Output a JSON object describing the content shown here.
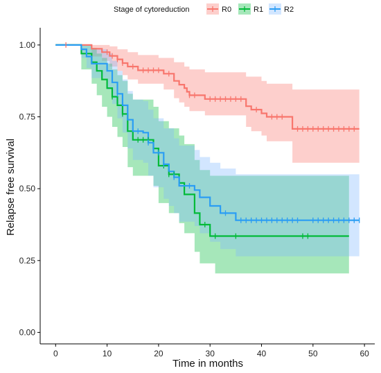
{
  "chart_data": {
    "type": "line",
    "subtype": "kaplan-meier",
    "title": "",
    "xlabel": "Time in months",
    "ylabel": "Relapse free survival",
    "xlim": [
      -3,
      62
    ],
    "ylim": [
      -0.04,
      1.06
    ],
    "x_ticks": [
      0,
      10,
      20,
      30,
      40,
      50,
      60
    ],
    "y_ticks": [
      0,
      0.25,
      0.5,
      0.75,
      1
    ],
    "y_tick_labels": [
      "0.00",
      "0.25",
      "0.50",
      "0.75",
      "1.00"
    ],
    "grid": false,
    "legend": {
      "title": "Stage of cytoreduction",
      "position": "top",
      "entries": [
        "R0",
        "R1",
        "R2"
      ]
    },
    "series": [
      {
        "name": "R0",
        "color": "#F8766D",
        "band_color": "#F8766D",
        "steps": [
          [
            0,
            1.0
          ],
          [
            7,
            0.987
          ],
          [
            9,
            0.975
          ],
          [
            10.5,
            0.962
          ],
          [
            12,
            0.95
          ],
          [
            13,
            0.937
          ],
          [
            14,
            0.925
          ],
          [
            16,
            0.912
          ],
          [
            21,
            0.9
          ],
          [
            23,
            0.875
          ],
          [
            24,
            0.862
          ],
          [
            25,
            0.85
          ],
          [
            25.5,
            0.837
          ],
          [
            26,
            0.825
          ],
          [
            29,
            0.812
          ],
          [
            37,
            0.787
          ],
          [
            38,
            0.775
          ],
          [
            40,
            0.762
          ],
          [
            41,
            0.75
          ],
          [
            46,
            0.708
          ],
          [
            59,
            0.708
          ]
        ],
        "upper": [
          [
            0,
            1.0
          ],
          [
            7,
            1.0
          ],
          [
            10.5,
            0.995
          ],
          [
            12,
            0.985
          ],
          [
            14,
            0.975
          ],
          [
            16,
            0.965
          ],
          [
            20,
            0.955
          ],
          [
            23,
            0.94
          ],
          [
            25,
            0.925
          ],
          [
            26,
            0.915
          ],
          [
            29,
            0.905
          ],
          [
            37,
            0.89
          ],
          [
            40,
            0.875
          ],
          [
            41,
            0.865
          ],
          [
            46,
            0.845
          ],
          [
            59,
            0.845
          ]
        ],
        "lower": [
          [
            0,
            1.0
          ],
          [
            7,
            0.96
          ],
          [
            9,
            0.945
          ],
          [
            10.5,
            0.925
          ],
          [
            12,
            0.91
          ],
          [
            13,
            0.895
          ],
          [
            14,
            0.88
          ],
          [
            16,
            0.865
          ],
          [
            21,
            0.845
          ],
          [
            23,
            0.815
          ],
          [
            24,
            0.8
          ],
          [
            25,
            0.785
          ],
          [
            26,
            0.77
          ],
          [
            29,
            0.755
          ],
          [
            37,
            0.715
          ],
          [
            38,
            0.7
          ],
          [
            40,
            0.685
          ],
          [
            41,
            0.665
          ],
          [
            46,
            0.59
          ],
          [
            59,
            0.59
          ]
        ],
        "censored": [
          2,
          10,
          11,
          12,
          13,
          15,
          17,
          18,
          19,
          20,
          22,
          26,
          27,
          30,
          31,
          32,
          33,
          34,
          35,
          36,
          39,
          42,
          43,
          44,
          47,
          48,
          49,
          50,
          51,
          52,
          53,
          54,
          55,
          56,
          57,
          58
        ]
      },
      {
        "name": "R1",
        "color": "#00BA38",
        "band_color": "#00BA38",
        "steps": [
          [
            0,
            1.0
          ],
          [
            5,
            0.97
          ],
          [
            7,
            0.94
          ],
          [
            8,
            0.91
          ],
          [
            9,
            0.88
          ],
          [
            10,
            0.85
          ],
          [
            11,
            0.82
          ],
          [
            12,
            0.79
          ],
          [
            13,
            0.76
          ],
          [
            14,
            0.7
          ],
          [
            15,
            0.67
          ],
          [
            19,
            0.64
          ],
          [
            20,
            0.58
          ],
          [
            22,
            0.55
          ],
          [
            24,
            0.52
          ],
          [
            25,
            0.48
          ],
          [
            27,
            0.415
          ],
          [
            28,
            0.375
          ],
          [
            30,
            0.335
          ],
          [
            57,
            0.335
          ]
        ],
        "upper": [
          [
            0,
            1.0
          ],
          [
            5,
            1.0
          ],
          [
            7,
            0.99
          ],
          [
            8,
            0.97
          ],
          [
            9,
            0.955
          ],
          [
            10,
            0.935
          ],
          [
            11,
            0.915
          ],
          [
            12,
            0.895
          ],
          [
            13,
            0.875
          ],
          [
            14,
            0.83
          ],
          [
            15,
            0.81
          ],
          [
            19,
            0.785
          ],
          [
            20,
            0.735
          ],
          [
            22,
            0.71
          ],
          [
            24,
            0.685
          ],
          [
            25,
            0.655
          ],
          [
            27,
            0.6
          ],
          [
            28,
            0.565
          ],
          [
            30,
            0.545
          ],
          [
            57,
            0.545
          ]
        ],
        "lower": [
          [
            0,
            1.0
          ],
          [
            5,
            0.915
          ],
          [
            7,
            0.865
          ],
          [
            8,
            0.825
          ],
          [
            9,
            0.785
          ],
          [
            10,
            0.75
          ],
          [
            11,
            0.715
          ],
          [
            12,
            0.68
          ],
          [
            13,
            0.645
          ],
          [
            14,
            0.575
          ],
          [
            15,
            0.545
          ],
          [
            19,
            0.51
          ],
          [
            20,
            0.45
          ],
          [
            22,
            0.415
          ],
          [
            24,
            0.38
          ],
          [
            25,
            0.345
          ],
          [
            27,
            0.28
          ],
          [
            28,
            0.24
          ],
          [
            31,
            0.205
          ],
          [
            57,
            0.205
          ]
        ],
        "censored": [
          11,
          13,
          16,
          17,
          18,
          21,
          22,
          23,
          29,
          31,
          35,
          48,
          49
        ]
      },
      {
        "name": "R2",
        "color": "#2A9DF4",
        "band_color": "#7FB6FF",
        "steps": [
          [
            0,
            1.0
          ],
          [
            5,
            0.985
          ],
          [
            6,
            0.96
          ],
          [
            7,
            0.935
          ],
          [
            10,
            0.91
          ],
          [
            11,
            0.87
          ],
          [
            12,
            0.83
          ],
          [
            13,
            0.79
          ],
          [
            14,
            0.74
          ],
          [
            15,
            0.7
          ],
          [
            17,
            0.695
          ],
          [
            18,
            0.66
          ],
          [
            19,
            0.625
          ],
          [
            21,
            0.585
          ],
          [
            22,
            0.56
          ],
          [
            23,
            0.54
          ],
          [
            24,
            0.51
          ],
          [
            27,
            0.495
          ],
          [
            28,
            0.47
          ],
          [
            30,
            0.44
          ],
          [
            32,
            0.415
          ],
          [
            35,
            0.39
          ],
          [
            59,
            0.39
          ]
        ],
        "upper": [
          [
            0,
            1.0
          ],
          [
            5,
            1.0
          ],
          [
            7,
            0.985
          ],
          [
            10,
            0.97
          ],
          [
            11,
            0.945
          ],
          [
            12,
            0.91
          ],
          [
            13,
            0.88
          ],
          [
            14,
            0.84
          ],
          [
            15,
            0.81
          ],
          [
            17,
            0.805
          ],
          [
            18,
            0.775
          ],
          [
            19,
            0.745
          ],
          [
            21,
            0.71
          ],
          [
            23,
            0.675
          ],
          [
            24,
            0.65
          ],
          [
            27,
            0.635
          ],
          [
            28,
            0.61
          ],
          [
            30,
            0.59
          ],
          [
            32,
            0.57
          ],
          [
            35,
            0.55
          ],
          [
            59,
            0.55
          ]
        ],
        "lower": [
          [
            0,
            1.0
          ],
          [
            5,
            0.955
          ],
          [
            6,
            0.92
          ],
          [
            7,
            0.885
          ],
          [
            10,
            0.845
          ],
          [
            11,
            0.795
          ],
          [
            12,
            0.745
          ],
          [
            13,
            0.695
          ],
          [
            14,
            0.64
          ],
          [
            15,
            0.6
          ],
          [
            17,
            0.59
          ],
          [
            18,
            0.545
          ],
          [
            19,
            0.505
          ],
          [
            21,
            0.465
          ],
          [
            22,
            0.44
          ],
          [
            23,
            0.415
          ],
          [
            24,
            0.385
          ],
          [
            27,
            0.37
          ],
          [
            28,
            0.345
          ],
          [
            30,
            0.315
          ],
          [
            32,
            0.29
          ],
          [
            35,
            0.265
          ],
          [
            59,
            0.265
          ]
        ],
        "censored": [
          12,
          16,
          18,
          20,
          21,
          23,
          26,
          33,
          36,
          37,
          38,
          39,
          40,
          41,
          42,
          43,
          44,
          45,
          46,
          47,
          50,
          51,
          52,
          53,
          54,
          55,
          56,
          57,
          58,
          59
        ]
      }
    ]
  }
}
